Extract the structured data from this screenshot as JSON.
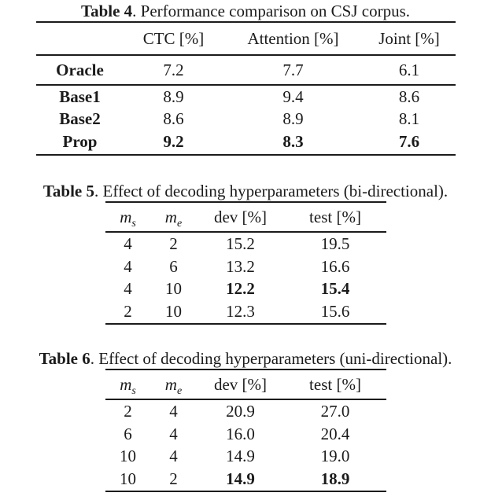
{
  "table4": {
    "caption": {
      "label": "Table 4",
      "text": ". Performance comparison on CSJ corpus."
    },
    "header": {
      "col1": "",
      "ctc": "CTC [%]",
      "attention": "Attention [%]",
      "joint": "Joint [%]"
    },
    "rows": [
      {
        "label": "Oracle",
        "ctc": "7.2",
        "attention": "7.7",
        "joint": "6.1"
      },
      {
        "label": "Base1",
        "ctc": "8.9",
        "attention": "9.4",
        "joint": "8.6"
      },
      {
        "label": "Base2",
        "ctc": "8.6",
        "attention": "8.9",
        "joint": "8.1"
      },
      {
        "label": "Prop",
        "ctc": "9.2",
        "attention": "8.3",
        "joint": "7.6"
      }
    ]
  },
  "table5": {
    "caption": {
      "label": "Table 5",
      "text": ". Effect of decoding hyperparameters (bi-directional)."
    },
    "header": {
      "ms_base": "m",
      "ms_sub": "s",
      "me_base": "m",
      "me_sub": "e",
      "dev": "dev [%]",
      "test": "test [%]"
    },
    "rows": [
      {
        "ms": "4",
        "me": "2",
        "dev": "15.2",
        "test": "19.5"
      },
      {
        "ms": "4",
        "me": "6",
        "dev": "13.2",
        "test": "16.6"
      },
      {
        "ms": "4",
        "me": "10",
        "dev": "12.2",
        "test": "15.4"
      },
      {
        "ms": "2",
        "me": "10",
        "dev": "12.3",
        "test": "15.6"
      }
    ]
  },
  "table6": {
    "caption": {
      "label": "Table 6",
      "text": ". Effect of decoding hyperparameters (uni-directional)."
    },
    "header": {
      "ms_base": "m",
      "ms_sub": "s",
      "me_base": "m",
      "me_sub": "e",
      "dev": "dev [%]",
      "test": "test [%]"
    },
    "rows": [
      {
        "ms": "2",
        "me": "4",
        "dev": "20.9",
        "test": "27.0"
      },
      {
        "ms": "6",
        "me": "4",
        "dev": "16.0",
        "test": "20.4"
      },
      {
        "ms": "10",
        "me": "4",
        "dev": "14.9",
        "test": "19.0"
      },
      {
        "ms": "10",
        "me": "2",
        "dev": "14.9",
        "test": "18.9"
      }
    ]
  }
}
